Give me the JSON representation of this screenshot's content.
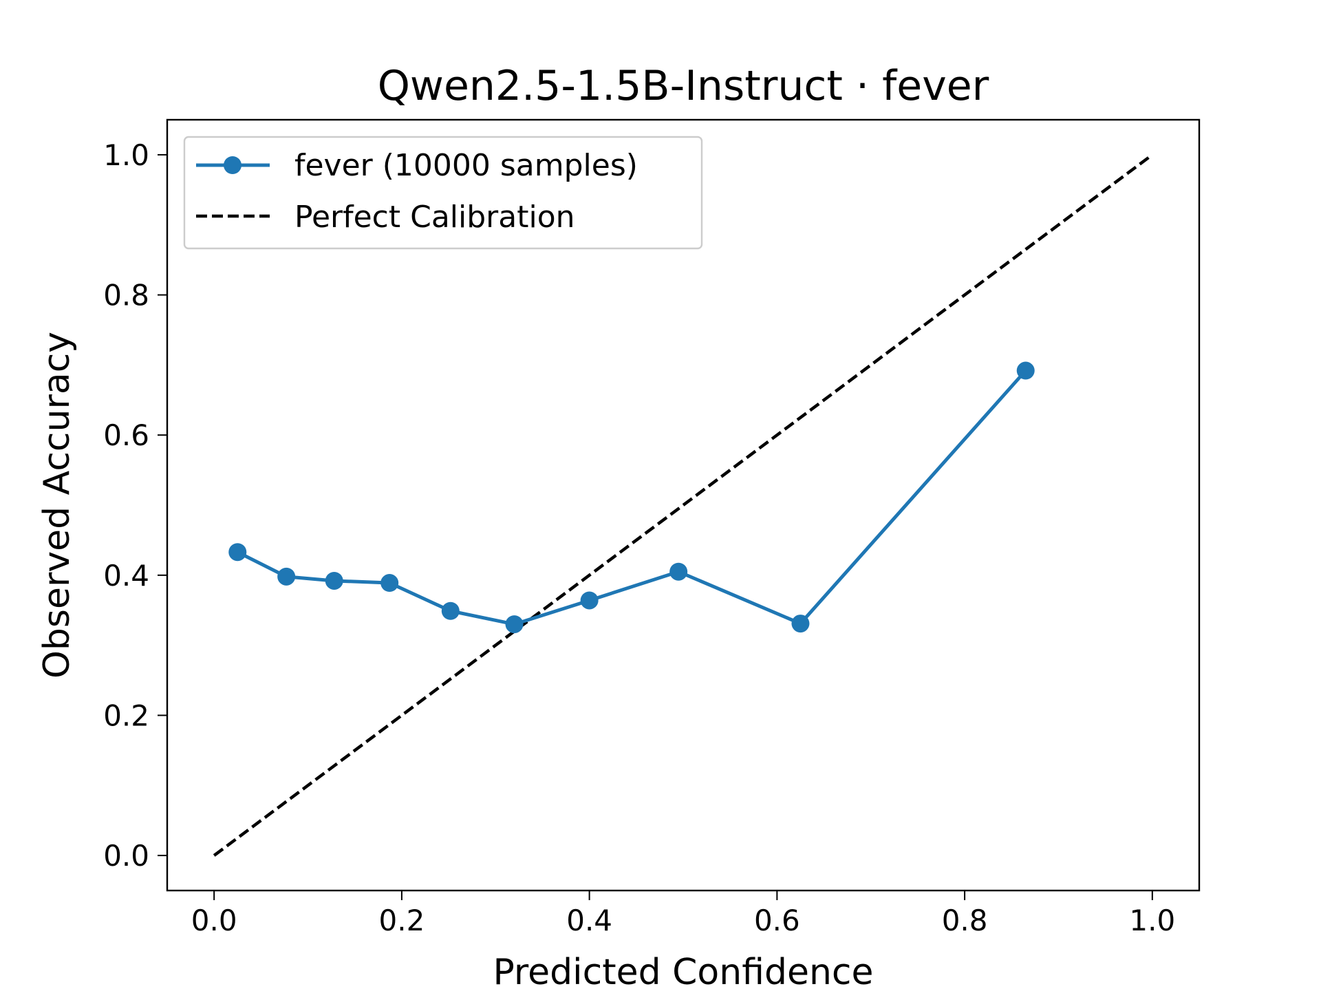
{
  "chart_data": {
    "type": "line",
    "title": "Qwen2.5-1.5B-Instruct · fever",
    "xlabel": "Predicted Confidence",
    "ylabel": "Observed Accuracy",
    "xlim": [
      -0.05,
      1.05
    ],
    "ylim": [
      -0.05,
      1.05
    ],
    "xticks": [
      "0.0",
      "0.2",
      "0.4",
      "0.6",
      "0.8",
      "1.0"
    ],
    "yticks": [
      "0.0",
      "0.2",
      "0.4",
      "0.6",
      "0.8",
      "1.0"
    ],
    "grid": false,
    "legend_position": "top-left",
    "series": [
      {
        "name": "fever (10000 samples)",
        "style": "solid-line-with-circle-markers",
        "color": "#1f77b4",
        "x": [
          0.025,
          0.077,
          0.128,
          0.187,
          0.252,
          0.32,
          0.4,
          0.495,
          0.625,
          0.865
        ],
        "y": [
          0.433,
          0.398,
          0.392,
          0.389,
          0.349,
          0.33,
          0.364,
          0.405,
          0.331,
          0.692
        ]
      },
      {
        "name": "Perfect Calibration",
        "style": "dashed-line",
        "color": "#000000",
        "x": [
          0.0,
          1.0
        ],
        "y": [
          0.0,
          1.0
        ]
      }
    ]
  }
}
